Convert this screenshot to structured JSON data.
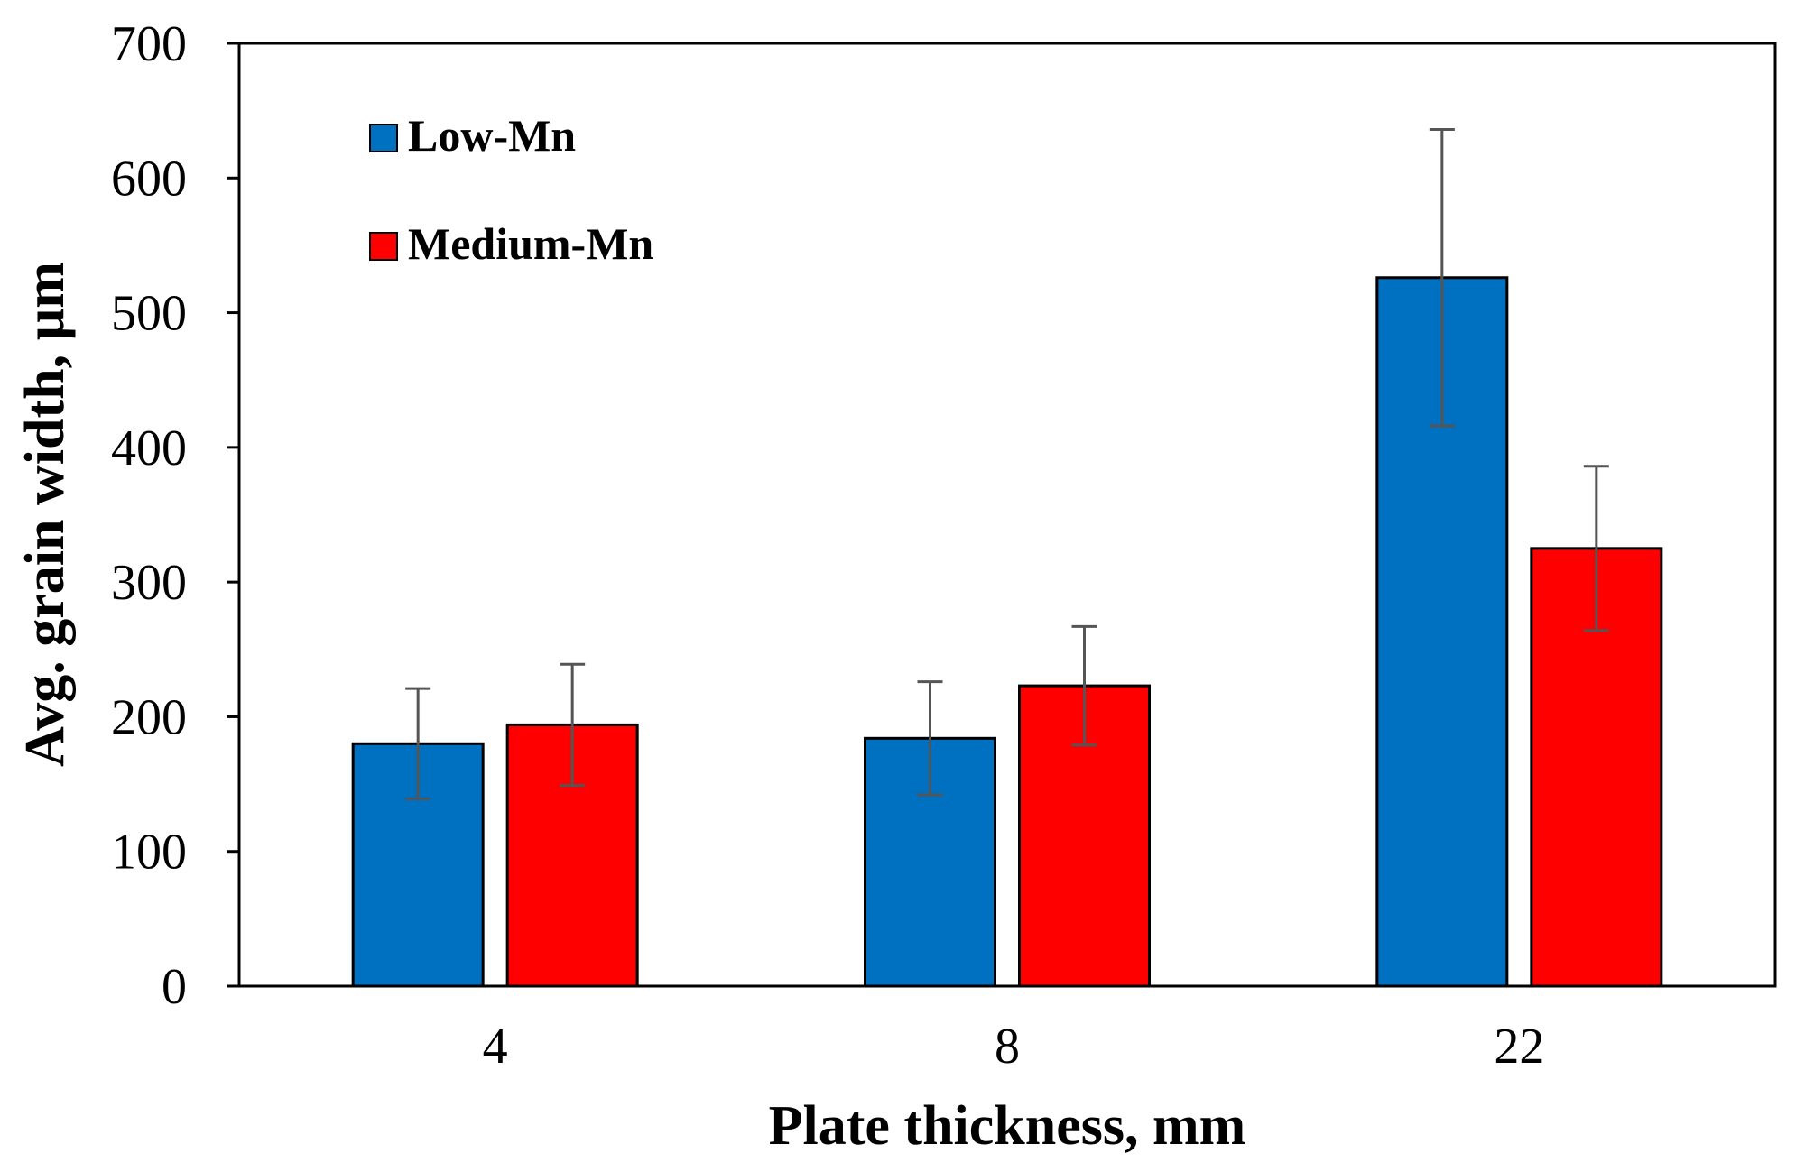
{
  "chart_data": {
    "type": "bar",
    "title": "",
    "xlabel": "Plate thickness, mm",
    "ylabel": "Avg. grain width, µm",
    "categories": [
      "4",
      "8",
      "22"
    ],
    "ylim": [
      0,
      700
    ],
    "yticks": [
      0,
      100,
      200,
      300,
      400,
      500,
      600,
      700
    ],
    "ytick_labels": [
      "0",
      "100",
      "200",
      "300",
      "400",
      "500",
      "600",
      "700"
    ],
    "grid": false,
    "legend_position": "top-left",
    "series": [
      {
        "name": "Low-Mn",
        "color": "#0070C0",
        "values": [
          180,
          184,
          526
        ],
        "errors": [
          41,
          42,
          110
        ]
      },
      {
        "name": "Medium-Mn",
        "color": "#FF0000",
        "values": [
          194,
          223,
          325
        ],
        "errors": [
          45,
          44,
          61
        ]
      }
    ]
  }
}
